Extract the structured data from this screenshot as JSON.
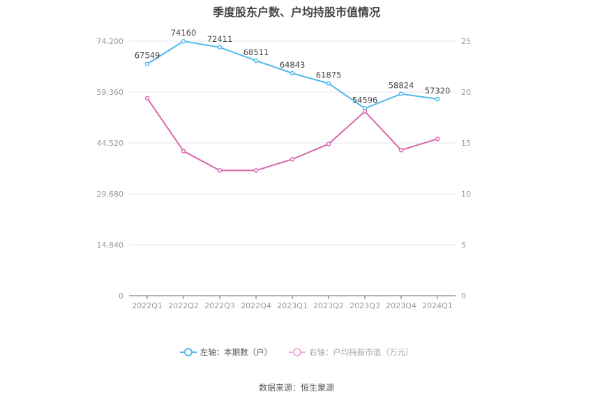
{
  "chart_data": {
    "type": "line",
    "title": "季度股东户数、户均持股市值情况",
    "categories": [
      "2022Q1",
      "2022Q2",
      "2022Q3",
      "2022Q4",
      "2023Q1",
      "2023Q2",
      "2023Q3",
      "2023Q4",
      "2024Q1"
    ],
    "series": [
      {
        "name": "左轴：本期数（户）",
        "axis": "left",
        "color": "#4db8ec",
        "values": [
          67549,
          74160,
          72411,
          68511,
          64843,
          61875,
          54596,
          58824,
          57320
        ],
        "labels": [
          "67549",
          "74160",
          "72411",
          "68511",
          "64843",
          "61875",
          "54596",
          "58824",
          "57320"
        ]
      },
      {
        "name": "右轴：户均持股市值（万元）",
        "axis": "right",
        "color": "#d966ad",
        "values": [
          19.4,
          14.2,
          12.3,
          12.3,
          13.4,
          14.9,
          18.1,
          14.3,
          15.4
        ]
      }
    ],
    "left_axis": {
      "ticks": [
        "0",
        "14,840",
        "29,680",
        "44,520",
        "59,360",
        "74,200"
      ],
      "min": 0,
      "max": 74200
    },
    "right_axis": {
      "ticks": [
        "0",
        "5",
        "10",
        "15",
        "20",
        "25"
      ],
      "min": 0,
      "max": 25
    },
    "grid": true,
    "legend_position": "bottom"
  },
  "legend": {
    "left": "左轴：本期数（户）",
    "right": "右轴：户均持股市值（万元）"
  },
  "source": "数据来源：恒生聚源",
  "colors": {
    "blue": "#4db8ec",
    "pink": "#d966ad",
    "pink_legend": "#f0aed6",
    "grid": "#e3e6ef"
  }
}
